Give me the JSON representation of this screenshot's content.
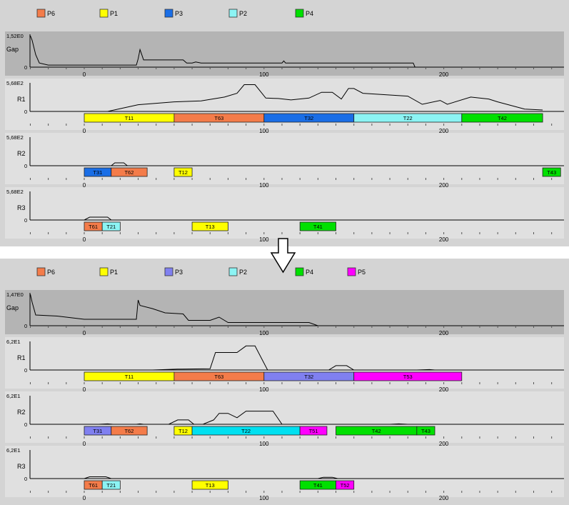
{
  "charts": [
    {
      "legend": [
        {
          "label": "P6",
          "color": "#f47c4a"
        },
        {
          "label": "P1",
          "color": "#ffff00"
        },
        {
          "label": "P3",
          "color": "#1a6ee6"
        },
        {
          "label": "P2",
          "color": "#8cf4f4"
        },
        {
          "label": "P4",
          "color": "#00e000"
        }
      ],
      "gap": {
        "label": "Gap",
        "ymax": "1,52E0",
        "zero": "0",
        "profile": [
          [
            -30,
            1.52
          ],
          [
            -29,
            1.3
          ],
          [
            -27,
            0.6
          ],
          [
            -25,
            0.2
          ],
          [
            -20,
            0.1
          ],
          [
            15,
            0.1
          ],
          [
            29,
            0.1
          ],
          [
            30,
            0.4
          ],
          [
            31,
            0.85
          ],
          [
            32,
            0.6
          ],
          [
            33,
            0.35
          ],
          [
            55,
            0.35
          ],
          [
            57,
            0.2
          ],
          [
            60,
            0.2
          ],
          [
            62,
            0.25
          ],
          [
            65,
            0.2
          ],
          [
            110,
            0.2
          ],
          [
            111,
            0.3
          ],
          [
            112,
            0.2
          ],
          [
            183,
            0.2
          ],
          [
            184,
            0
          ]
        ]
      },
      "rows": [
        {
          "label": "R1",
          "ymax": "5,68E2",
          "zero": "0",
          "profile": [
            [
              13,
              0
            ],
            [
              18,
              40
            ],
            [
              30,
              140
            ],
            [
              50,
              200
            ],
            [
              65,
              220
            ],
            [
              78,
              300
            ],
            [
              85,
              380
            ],
            [
              89,
              560
            ],
            [
              95,
              560
            ],
            [
              101,
              280
            ],
            [
              108,
              270
            ],
            [
              115,
              240
            ],
            [
              125,
              280
            ],
            [
              132,
              400
            ],
            [
              138,
              400
            ],
            [
              143,
              260
            ],
            [
              147,
              480
            ],
            [
              150,
              480
            ],
            [
              155,
              380
            ],
            [
              180,
              320
            ],
            [
              188,
              150
            ],
            [
              198,
              230
            ],
            [
              202,
              150
            ],
            [
              215,
              300
            ],
            [
              225,
              260
            ],
            [
              230,
              200
            ],
            [
              245,
              50
            ],
            [
              255,
              30
            ]
          ],
          "tasks": [
            {
              "label": "T11",
              "start": 0,
              "end": 50,
              "color": "#ffff00"
            },
            {
              "label": "T63",
              "start": 50,
              "end": 100,
              "color": "#f47c4a"
            },
            {
              "label": "T32",
              "start": 100,
              "end": 150,
              "color": "#1a6ee6"
            },
            {
              "label": "T22",
              "start": 150,
              "end": 210,
              "color": "#8cf4f4"
            },
            {
              "label": "T42",
              "start": 210,
              "end": 255,
              "color": "#00e000"
            }
          ]
        },
        {
          "label": "R2",
          "ymax": "5,68E2",
          "zero": "0",
          "profile": [
            [
              15,
              0
            ],
            [
              17,
              60
            ],
            [
              22,
              60
            ],
            [
              24,
              0
            ]
          ],
          "tasks": [
            {
              "label": "T31",
              "start": 0,
              "end": 15,
              "color": "#1a6ee6"
            },
            {
              "label": "T62",
              "start": 15,
              "end": 35,
              "color": "#f47c4a"
            },
            {
              "label": "T12",
              "start": 50,
              "end": 60,
              "color": "#ffff00"
            },
            {
              "label": "T43",
              "start": 255,
              "end": 265,
              "color": "#00e000"
            }
          ]
        },
        {
          "label": "R3",
          "ymax": "5,68E2",
          "zero": "0",
          "profile": [
            [
              0,
              0
            ],
            [
              3,
              60
            ],
            [
              13,
              60
            ],
            [
              15,
              0
            ]
          ],
          "tasks": [
            {
              "label": "T61",
              "start": 0,
              "end": 10,
              "color": "#f47c4a"
            },
            {
              "label": "T21",
              "start": 10,
              "end": 20,
              "color": "#8cf4f4"
            },
            {
              "label": "T13",
              "start": 60,
              "end": 80,
              "color": "#ffff00"
            },
            {
              "label": "T41",
              "start": 120,
              "end": 140,
              "color": "#00e000"
            }
          ]
        }
      ]
    },
    {
      "legend": [
        {
          "label": "P6",
          "color": "#f47c4a"
        },
        {
          "label": "P1",
          "color": "#ffff00"
        },
        {
          "label": "P3",
          "color": "#8080f0"
        },
        {
          "label": "P2",
          "color": "#8cf4f4"
        },
        {
          "label": "P4",
          "color": "#00e000"
        },
        {
          "label": "P5",
          "color": "#ff00ff"
        }
      ],
      "gap": {
        "label": "Gap",
        "ymax": "1,47E0",
        "zero": "0",
        "profile": [
          [
            -30,
            1.47
          ],
          [
            -29,
            1.1
          ],
          [
            -27,
            0.5
          ],
          [
            -15,
            0.45
          ],
          [
            -10,
            0.4
          ],
          [
            -5,
            0.35
          ],
          [
            0,
            0.3
          ],
          [
            29,
            0.3
          ],
          [
            30,
            1.2
          ],
          [
            31,
            0.95
          ],
          [
            38,
            0.8
          ],
          [
            45,
            0.6
          ],
          [
            55,
            0.55
          ],
          [
            58,
            0.25
          ],
          [
            70,
            0.25
          ],
          [
            75,
            0.4
          ],
          [
            80,
            0.15
          ],
          [
            100,
            0.15
          ],
          [
            125,
            0.15
          ],
          [
            130,
            0
          ]
        ]
      },
      "rows": [
        {
          "label": "R1",
          "ymax": "6,2E1",
          "zero": "0",
          "profile": [
            [
              38,
              0
            ],
            [
              52,
              2
            ],
            [
              70,
              3
            ],
            [
              73,
              40
            ],
            [
              85,
              40
            ],
            [
              90,
              55
            ],
            [
              95,
              55
            ],
            [
              102,
              0
            ],
            [
              136,
              0
            ],
            [
              140,
              10
            ],
            [
              146,
              10
            ],
            [
              150,
              0
            ],
            [
              185,
              0
            ],
            [
              192,
              1
            ],
            [
              195,
              0
            ]
          ],
          "tasks": [
            {
              "label": "T11",
              "start": 0,
              "end": 50,
              "color": "#ffff00"
            },
            {
              "label": "T63",
              "start": 50,
              "end": 100,
              "color": "#f47c4a"
            },
            {
              "label": "T32",
              "start": 100,
              "end": 150,
              "color": "#8080f0"
            },
            {
              "label": "T53",
              "start": 150,
              "end": 210,
              "color": "#ff00ff"
            }
          ]
        },
        {
          "label": "R2",
          "ymax": "6,2E1",
          "zero": "0",
          "profile": [
            [
              8,
              0
            ],
            [
              13,
              1
            ],
            [
              16,
              0
            ],
            [
              29,
              0
            ],
            [
              31,
              1
            ],
            [
              33,
              0
            ],
            [
              47,
              0
            ],
            [
              52,
              10
            ],
            [
              58,
              10
            ],
            [
              61,
              0
            ],
            [
              66,
              0
            ],
            [
              72,
              10
            ],
            [
              75,
              25
            ],
            [
              80,
              25
            ],
            [
              85,
              15
            ],
            [
              90,
              30
            ],
            [
              105,
              30
            ],
            [
              110,
              0
            ],
            [
              170,
              0
            ],
            [
              175,
              1
            ],
            [
              180,
              0
            ]
          ],
          "tasks": [
            {
              "label": "T31",
              "start": 0,
              "end": 15,
              "color": "#8080f0"
            },
            {
              "label": "T62",
              "start": 15,
              "end": 35,
              "color": "#f47c4a"
            },
            {
              "label": "T12",
              "start": 50,
              "end": 60,
              "color": "#ffff00"
            },
            {
              "label": "T22",
              "start": 60,
              "end": 120,
              "color": "#00e0f0"
            },
            {
              "label": "T51",
              "start": 120,
              "end": 135,
              "color": "#ff00ff"
            },
            {
              "label": "T42",
              "start": 140,
              "end": 185,
              "color": "#00e000"
            },
            {
              "label": "T43",
              "start": 185,
              "end": 195,
              "color": "#00e000"
            }
          ]
        },
        {
          "label": "R3",
          "ymax": "6,2E1",
          "zero": "0",
          "profile": [
            [
              0,
              0
            ],
            [
              3,
              4
            ],
            [
              12,
              4
            ],
            [
              15,
              0
            ],
            [
              130,
              0
            ],
            [
              133,
              3
            ],
            [
              138,
              3
            ],
            [
              141,
              0
            ]
          ],
          "tasks": [
            {
              "label": "T61",
              "start": 0,
              "end": 10,
              "color": "#f47c4a"
            },
            {
              "label": "T21",
              "start": 10,
              "end": 20,
              "color": "#8cf4f4"
            },
            {
              "label": "T13",
              "start": 60,
              "end": 80,
              "color": "#ffff00"
            },
            {
              "label": "T41",
              "start": 120,
              "end": 140,
              "color": "#00e000"
            },
            {
              "label": "T52",
              "start": 140,
              "end": 150,
              "color": "#ff00ff"
            }
          ]
        }
      ]
    }
  ],
  "xaxis": {
    "ticks": [
      "0",
      "100",
      "200"
    ]
  },
  "arrow_icon": "down-arrow-icon",
  "chart_data": [
    {
      "type": "area",
      "title": "",
      "series": [
        {
          "name": "Gap"
        },
        {
          "name": "R1"
        },
        {
          "name": "R2"
        },
        {
          "name": "R3"
        }
      ],
      "legend": [
        "P6",
        "P1",
        "P3",
        "P2",
        "P4"
      ]
    },
    {
      "type": "area",
      "title": "",
      "series": [
        {
          "name": "Gap"
        },
        {
          "name": "R1"
        },
        {
          "name": "R2"
        },
        {
          "name": "R3"
        }
      ],
      "legend": [
        "P6",
        "P1",
        "P3",
        "P2",
        "P4",
        "P5"
      ]
    }
  ]
}
